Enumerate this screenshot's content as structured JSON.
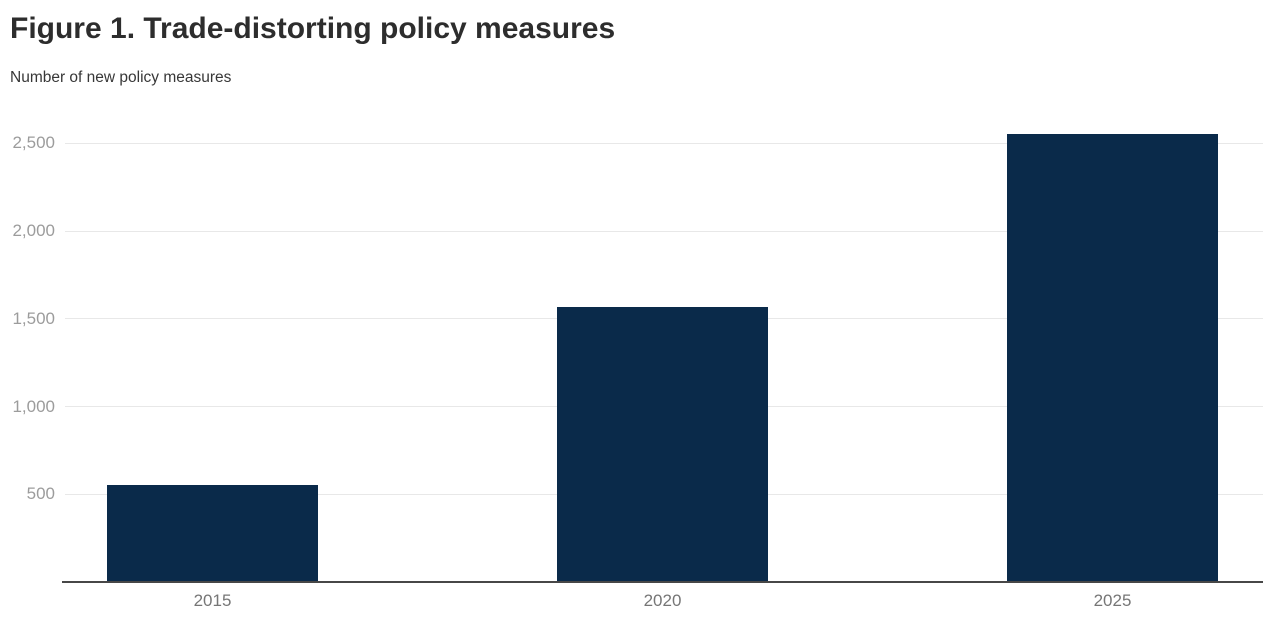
{
  "header": {
    "title": "Figure 1. Trade-distorting policy measures",
    "subtitle": "Number of new policy measures"
  },
  "chart_data": {
    "type": "bar",
    "title": "Figure 1. Trade-distorting policy measures",
    "subtitle": "Number of new policy measures",
    "categories": [
      "2015",
      "2020",
      "2025"
    ],
    "values": [
      550,
      1570,
      2555
    ],
    "xlabel": "",
    "ylabel": "Number of new policy measures",
    "ylim": [
      0,
      2690
    ],
    "yticks": [
      500,
      1000,
      1500,
      2000,
      2500
    ],
    "ytick_labels": [
      "500",
      "1,000",
      "1,500",
      "2,000",
      "2,500"
    ],
    "grid": true,
    "legend": false,
    "colors": {
      "bar": "#0a2a4a",
      "gridline": "#e8e8e8",
      "axis_line": "#474747",
      "ytick_text": "#9c9c9c",
      "xtick_text": "#767676",
      "title_text": "#2d2d2d",
      "subtitle_text": "#373737"
    }
  }
}
